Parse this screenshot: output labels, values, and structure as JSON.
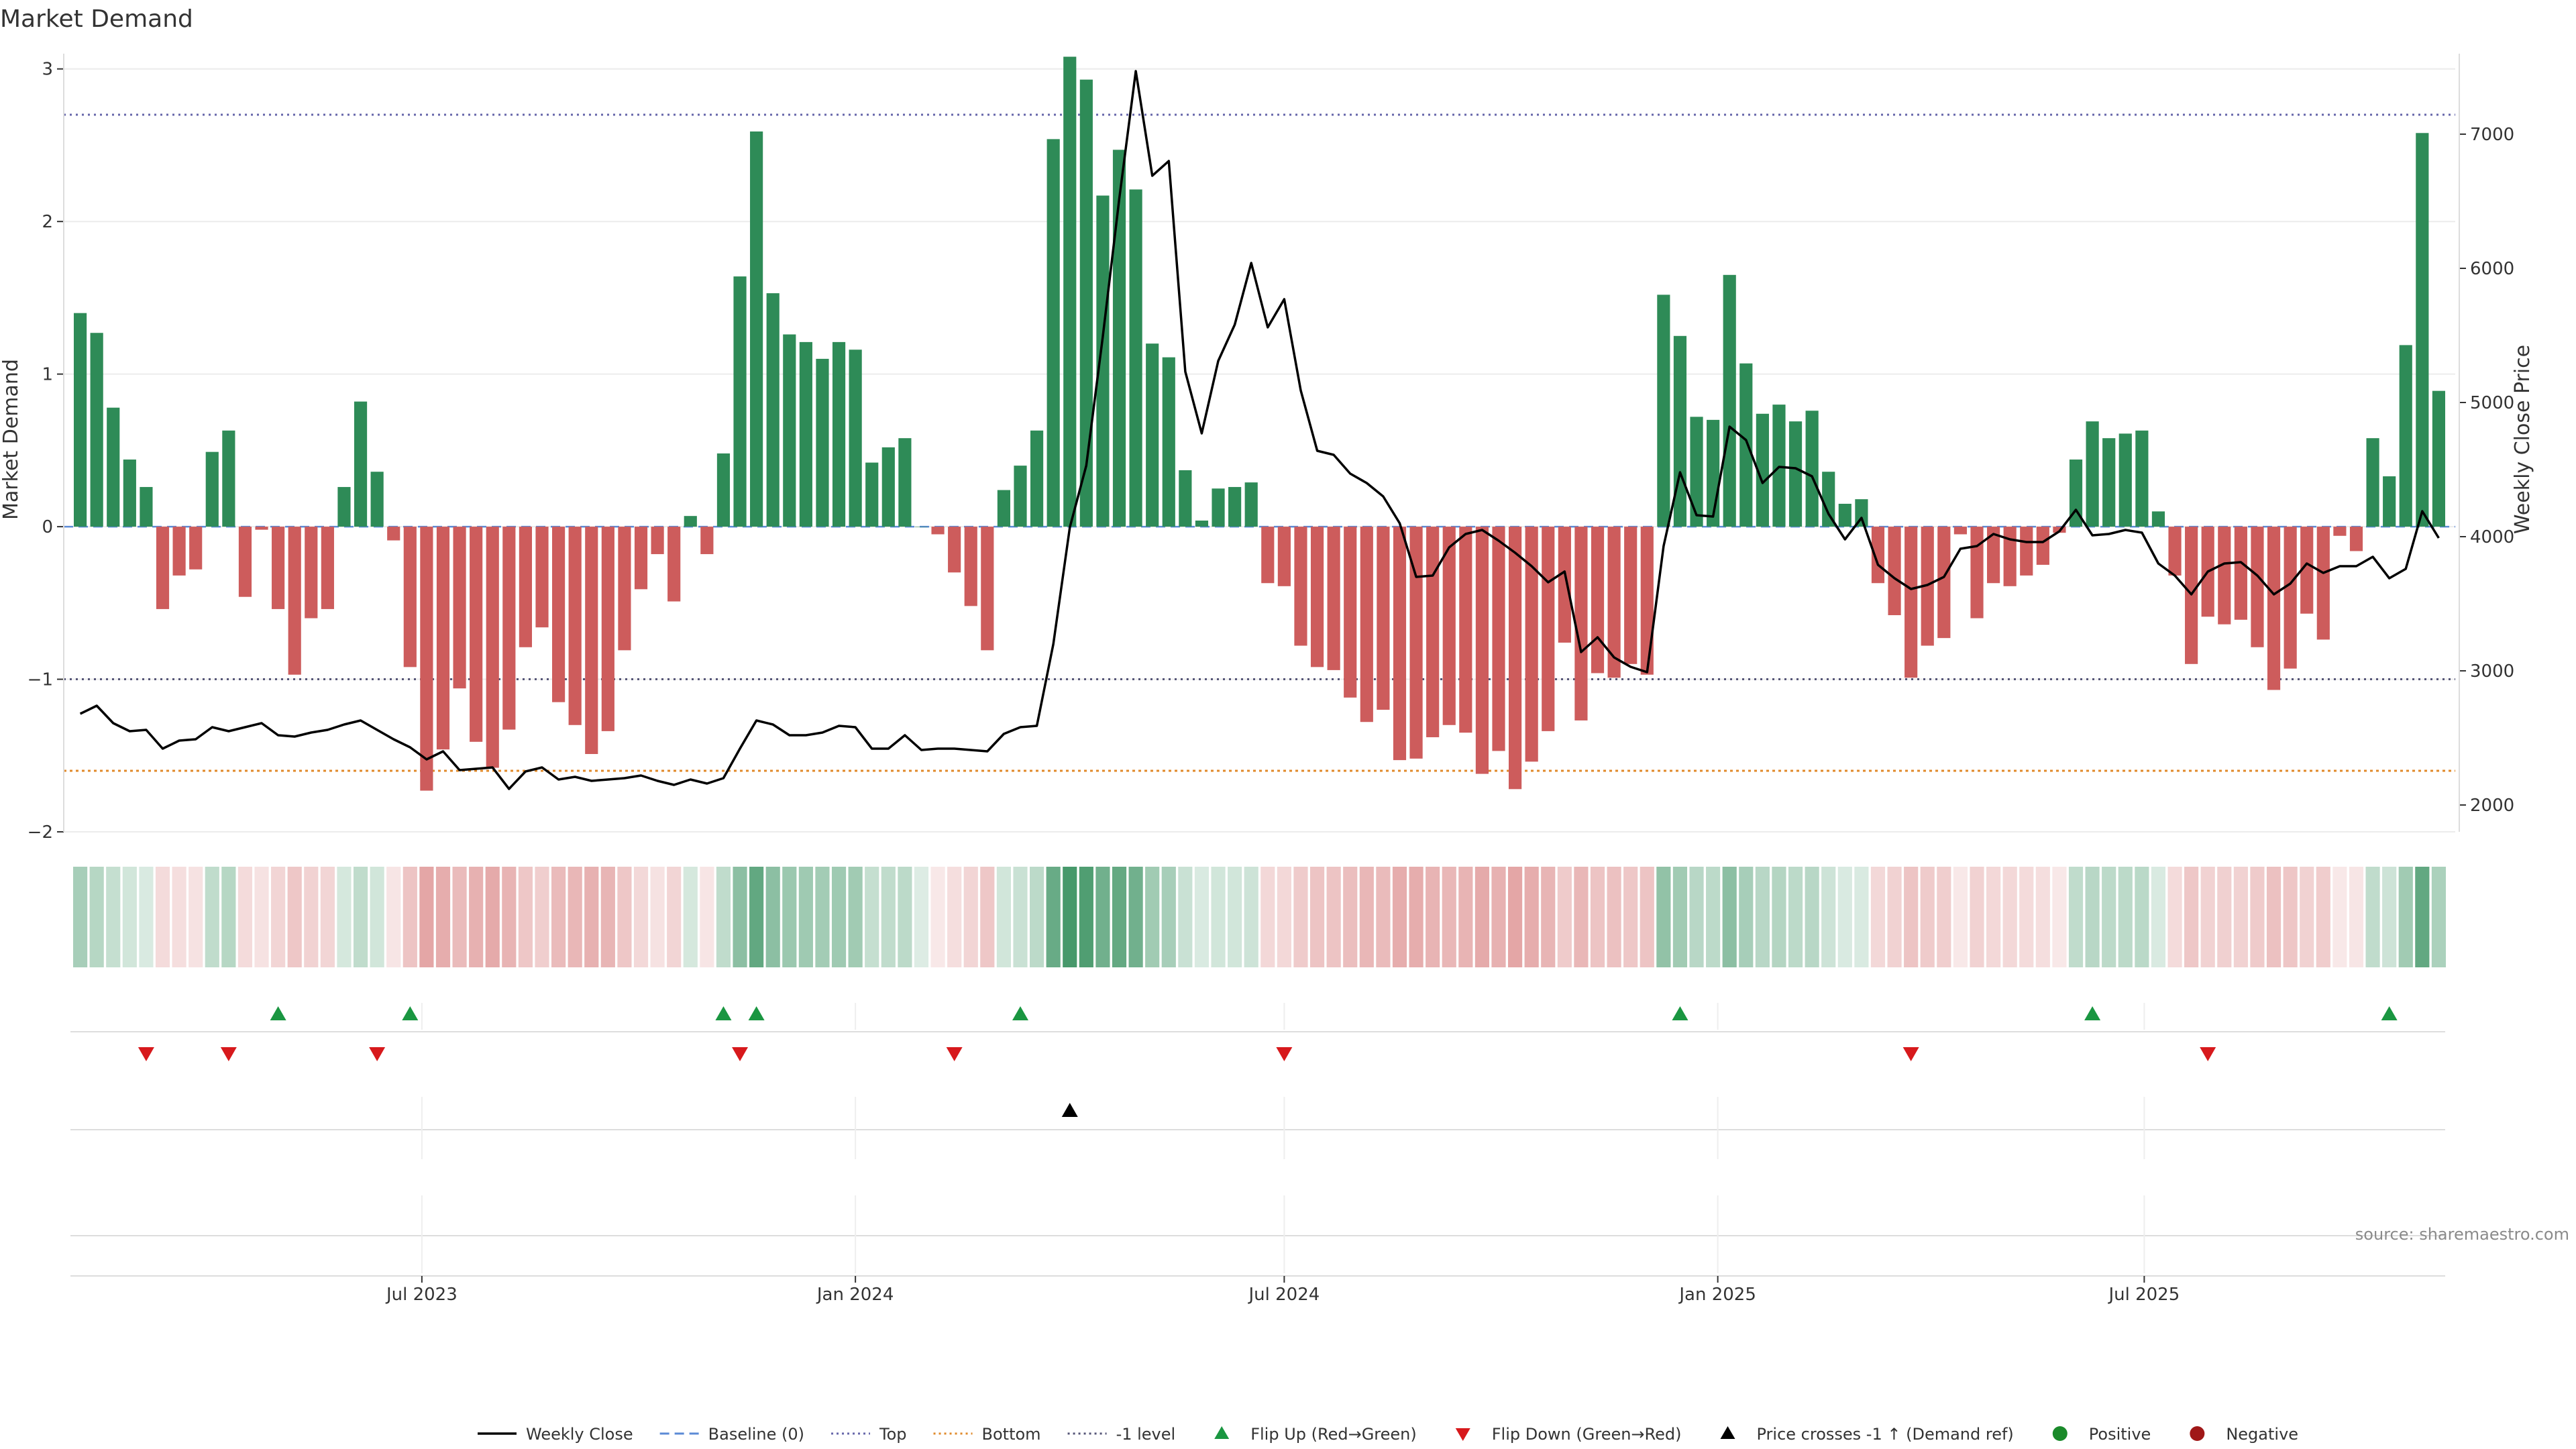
{
  "chart_data": {
    "type": "bar",
    "title": "Market Demand",
    "ylabel_left": "Market Demand",
    "ylabel_right": "Weekly Close Price",
    "source": "source: sharemaestro.com",
    "ylim_left": [
      -2,
      3.1
    ],
    "ylim_right": [
      1800,
      7600
    ],
    "yticks_left": [
      -2,
      -1,
      0,
      1,
      2,
      3
    ],
    "ytick_labels_left": [
      "−2",
      "−1",
      "0",
      "1",
      "2",
      "3"
    ],
    "yticks_right": [
      2000,
      3000,
      4000,
      5000,
      6000,
      7000
    ],
    "ytick_labels_right": [
      "2000",
      "3000",
      "4000",
      "5000",
      "6000",
      "7000"
    ],
    "x_range": [
      "2023-01-30",
      "2025-11-10"
    ],
    "xtick_dates": [
      "2023-07-01",
      "2024-01-01",
      "2024-07-01",
      "2025-01-01",
      "2025-07-01"
    ],
    "xtick_labels": [
      "Jul 2023",
      "Jan 2024",
      "Jul 2024",
      "Jan 2025",
      "Jul 2025"
    ],
    "first_week": "2023-02-06",
    "week_step_days": 7,
    "demand": [
      1.4,
      1.27,
      0.78,
      0.44,
      0.26,
      -0.54,
      -0.32,
      -0.28,
      0.49,
      0.63,
      -0.46,
      -0.02,
      -0.54,
      -0.97,
      -0.6,
      -0.54,
      0.26,
      0.82,
      0.36,
      -0.09,
      -0.92,
      -1.73,
      -1.46,
      -1.06,
      -1.41,
      -1.58,
      -1.33,
      -0.79,
      -0.66,
      -1.15,
      -1.3,
      -1.49,
      -1.34,
      -0.81,
      -0.41,
      -0.18,
      -0.49,
      0.07,
      -0.18,
      0.48,
      1.64,
      2.59,
      1.53,
      1.26,
      1.21,
      1.1,
      1.21,
      1.16,
      0.42,
      0.52,
      0.58,
      0.0,
      -0.05,
      -0.3,
      -0.52,
      -0.81,
      0.24,
      0.4,
      0.63,
      2.54,
      3.08,
      2.93,
      2.17,
      2.47,
      2.21,
      1.2,
      1.11,
      0.37,
      0.04,
      0.25,
      0.26,
      0.29,
      -0.37,
      -0.39,
      -0.78,
      -0.92,
      -0.94,
      -1.12,
      -1.28,
      -1.2,
      -1.53,
      -1.52,
      -1.38,
      -1.3,
      -1.35,
      -1.62,
      -1.47,
      -1.72,
      -1.54,
      -1.34,
      -0.76,
      -1.27,
      -0.96,
      -0.99,
      -0.9,
      -0.97,
      1.52,
      1.25,
      0.72,
      0.7,
      1.65,
      1.07,
      0.74,
      0.8,
      0.69,
      0.76,
      0.36,
      0.15,
      0.18,
      -0.37,
      -0.58,
      -0.99,
      -0.78,
      -0.73,
      -0.05,
      -0.6,
      -0.37,
      -0.39,
      -0.32,
      -0.25,
      -0.04,
      0.44,
      0.69,
      0.58,
      0.61,
      0.63,
      0.1,
      -0.32,
      -0.9,
      -0.59,
      -0.64,
      -0.61,
      -0.79,
      -1.07,
      -0.93,
      -0.57,
      -0.74,
      -0.06,
      -0.16,
      0.58,
      0.33,
      1.19,
      2.58,
      0.89
    ],
    "weekly_close": [
      2680,
      2740,
      2610,
      2550,
      2560,
      2420,
      2480,
      2490,
      2580,
      2550,
      2580,
      2610,
      2520,
      2510,
      2540,
      2560,
      2600,
      2630,
      2560,
      2490,
      2430,
      2340,
      2400,
      2260,
      2270,
      2280,
      2120,
      2250,
      2280,
      2190,
      2210,
      2180,
      2190,
      2200,
      2220,
      2180,
      2150,
      2190,
      2160,
      2200,
      2420,
      2630,
      2600,
      2520,
      2520,
      2540,
      2590,
      2580,
      2420,
      2420,
      2520,
      2410,
      2420,
      2420,
      2410,
      2400,
      2530,
      2580,
      2590,
      3200,
      4070,
      4530,
      5490,
      6520,
      7470,
      6690,
      6800,
      5230,
      4770,
      5310,
      5580,
      6040,
      5560,
      5770,
      5090,
      4640,
      4610,
      4470,
      4400,
      4300,
      4100,
      3700,
      3710,
      3920,
      4020,
      4050,
      3970,
      3880,
      3780,
      3660,
      3740,
      3140,
      3250,
      3100,
      3030,
      2990,
      3930,
      4480,
      4160,
      4150,
      4820,
      4720,
      4400,
      4520,
      4510,
      4450,
      4170,
      3980,
      4140,
      3790,
      3690,
      3610,
      3640,
      3700,
      3910,
      3930,
      4020,
      3980,
      3960,
      3960,
      4040,
      4200,
      4010,
      4020,
      4050,
      4030,
      3800,
      3710,
      3570,
      3740,
      3800,
      3810,
      3710,
      3570,
      3650,
      3800,
      3730,
      3780,
      3780,
      3850,
      3690,
      3760,
      4190,
      3990
    ],
    "band_opacity": [
      0.42,
      0.35,
      0.28,
      0.22,
      0.18,
      0.22,
      0.2,
      0.18,
      0.3,
      0.35,
      0.22,
      0.18,
      0.26,
      0.34,
      0.28,
      0.26,
      0.2,
      0.3,
      0.22,
      0.16,
      0.36,
      0.55,
      0.5,
      0.42,
      0.48,
      0.52,
      0.46,
      0.34,
      0.3,
      0.42,
      0.44,
      0.48,
      0.45,
      0.34,
      0.24,
      0.18,
      0.26,
      0.2,
      0.16,
      0.3,
      0.55,
      0.75,
      0.55,
      0.48,
      0.46,
      0.44,
      0.46,
      0.45,
      0.28,
      0.3,
      0.32,
      0.16,
      0.14,
      0.2,
      0.26,
      0.34,
      0.22,
      0.26,
      0.32,
      0.72,
      0.88,
      0.84,
      0.68,
      0.74,
      0.68,
      0.45,
      0.42,
      0.26,
      0.18,
      0.22,
      0.22,
      0.24,
      0.24,
      0.24,
      0.32,
      0.36,
      0.36,
      0.4,
      0.44,
      0.42,
      0.5,
      0.5,
      0.46,
      0.44,
      0.46,
      0.52,
      0.48,
      0.55,
      0.5,
      0.45,
      0.32,
      0.44,
      0.36,
      0.38,
      0.34,
      0.36,
      0.52,
      0.45,
      0.34,
      0.32,
      0.55,
      0.42,
      0.34,
      0.36,
      0.32,
      0.34,
      0.24,
      0.18,
      0.18,
      0.24,
      0.28,
      0.36,
      0.32,
      0.3,
      0.14,
      0.28,
      0.24,
      0.24,
      0.22,
      0.2,
      0.14,
      0.3,
      0.34,
      0.32,
      0.32,
      0.33,
      0.18,
      0.22,
      0.34,
      0.28,
      0.29,
      0.28,
      0.32,
      0.38,
      0.35,
      0.28,
      0.31,
      0.14,
      0.16,
      0.3,
      0.24,
      0.45,
      0.75,
      0.4
    ],
    "flip_up": [
      "2023-05-01",
      "2023-06-26",
      "2023-11-06",
      "2023-11-20",
      "2024-03-11",
      "2024-12-16",
      "2025-06-09",
      "2025-10-13"
    ],
    "flip_down": [
      "2023-03-06",
      "2023-04-10",
      "2023-06-12",
      "2023-11-13",
      "2024-02-12",
      "2024-07-01",
      "2025-03-24",
      "2025-07-28"
    ],
    "price_cross": [
      "2024-04-01"
    ],
    "levels": {
      "top": 2.7,
      "minus_one": -1.0,
      "bottom": -1.6,
      "baseline": 0
    },
    "colors": {
      "positive": "#2e8b57",
      "negative": "#cd5c5c",
      "line": "#000000",
      "top": "#6666aa",
      "bottom": "#e08a2b",
      "minus_one": "#555577",
      "baseline": "#5b8ad6",
      "flip_up": "#1a9641",
      "flip_down": "#d7191c",
      "cross": "#000000",
      "legend_positive": "#1a8a2a",
      "legend_negative": "#a01818"
    },
    "legend": [
      {
        "label": "Weekly Close",
        "kind": "line",
        "color": "#000000"
      },
      {
        "label": "Baseline (0)",
        "kind": "dash",
        "color": "#5b8ad6"
      },
      {
        "label": "Top",
        "kind": "dot",
        "color": "#6666aa"
      },
      {
        "label": "Bottom",
        "kind": "dot",
        "color": "#e08a2b"
      },
      {
        "label": "-1 level",
        "kind": "dot",
        "color": "#555577"
      },
      {
        "label": "Flip Up (Red→Green)",
        "kind": "up",
        "color": "#1a9641"
      },
      {
        "label": "Flip Down (Green→Red)",
        "kind": "down",
        "color": "#d7191c"
      },
      {
        "label": "Price crosses -1 ↑ (Demand ref)",
        "kind": "up",
        "color": "#000000"
      },
      {
        "label": "Positive",
        "kind": "circle",
        "color": "#1a8a2a"
      },
      {
        "label": "Negative",
        "kind": "circle",
        "color": "#a01818"
      }
    ]
  }
}
